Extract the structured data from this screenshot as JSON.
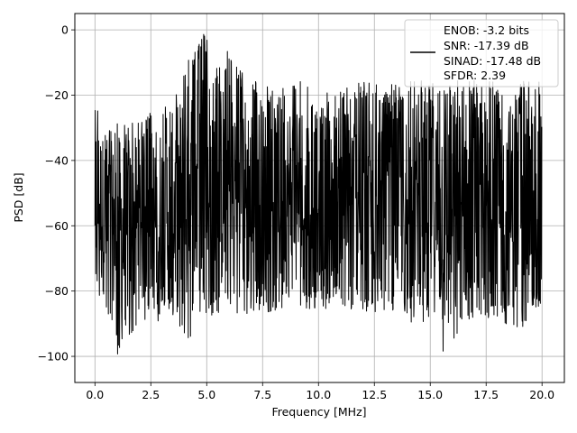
{
  "chart_data": {
    "type": "line",
    "title": "",
    "xlabel": "Frequency [MHz]",
    "ylabel": "PSD [dB]",
    "xlim": [
      -0.9,
      21.0
    ],
    "ylim": [
      -108,
      5
    ],
    "xticks": [
      0.0,
      2.5,
      5.0,
      7.5,
      10.0,
      12.5,
      15.0,
      17.5,
      20.0
    ],
    "xtick_labels": [
      "0.0",
      "2.5",
      "5.0",
      "7.5",
      "10.0",
      "12.5",
      "15.0",
      "17.5",
      "20.0"
    ],
    "yticks": [
      0,
      -20,
      -40,
      -60,
      -80,
      -100
    ],
    "ytick_labels": [
      "0",
      "−20",
      "−40",
      "−60",
      "−80",
      "−100"
    ],
    "grid": true,
    "legend_position": "top-right",
    "series": [
      {
        "name": "",
        "color": "#000000",
        "legend_lines": [
          "ENOB: -3.2 bits",
          "SNR: -17.39 dB",
          "SINAD: -17.48 dB",
          "SFDR: 2.39"
        ],
        "x_start": 0.0,
        "x_end": 20.0,
        "x_step": 0.05,
        "band_upper_envelope": [
          [
            0.0,
            -20
          ],
          [
            0.5,
            -30
          ],
          [
            1.0,
            -28
          ],
          [
            1.5,
            -26
          ],
          [
            2.0,
            -28
          ],
          [
            2.5,
            -25
          ],
          [
            3.0,
            -24
          ],
          [
            3.5,
            -20
          ],
          [
            4.0,
            -10
          ],
          [
            4.5,
            -5
          ],
          [
            4.8,
            0
          ],
          [
            5.0,
            -3
          ],
          [
            5.5,
            -12
          ],
          [
            6.0,
            -5
          ],
          [
            6.5,
            -12
          ],
          [
            7.0,
            -15
          ],
          [
            8.0,
            -18
          ],
          [
            9.0,
            -15
          ],
          [
            10.0,
            -20
          ],
          [
            11.0,
            -18
          ],
          [
            12.0,
            -15
          ],
          [
            13.0,
            -17
          ],
          [
            14.0,
            -16
          ],
          [
            15.0,
            -14
          ],
          [
            16.0,
            -15
          ],
          [
            17.0,
            -14
          ],
          [
            18.0,
            -16
          ],
          [
            19.0,
            -16
          ],
          [
            20.0,
            -14
          ]
        ],
        "band_lower_envelope": [
          [
            0.0,
            -80
          ],
          [
            0.5,
            -88
          ],
          [
            1.0,
            -100
          ],
          [
            1.5,
            -94
          ],
          [
            2.0,
            -90
          ],
          [
            2.5,
            -88
          ],
          [
            3.0,
            -90
          ],
          [
            3.5,
            -88
          ],
          [
            4.0,
            -96
          ],
          [
            5.0,
            -88
          ],
          [
            6.0,
            -86
          ],
          [
            7.0,
            -88
          ],
          [
            8.0,
            -86
          ],
          [
            9.0,
            -86
          ],
          [
            10.0,
            -86
          ],
          [
            11.0,
            -86
          ],
          [
            12.0,
            -88
          ],
          [
            13.0,
            -86
          ],
          [
            14.0,
            -90
          ],
          [
            15.0,
            -90
          ],
          [
            15.8,
            -103
          ],
          [
            16.5,
            -92
          ],
          [
            17.0,
            -92
          ],
          [
            18.0,
            -90
          ],
          [
            19.0,
            -92
          ],
          [
            20.0,
            -84
          ]
        ]
      }
    ]
  }
}
